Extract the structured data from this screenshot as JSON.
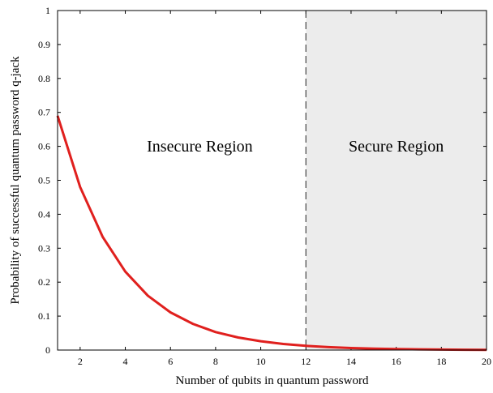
{
  "chart_data": {
    "type": "line",
    "title": "",
    "xlabel": "Number of qubits in quantum password",
    "ylabel": "Probability of successful quantum password q-jack",
    "xlim": [
      1,
      20
    ],
    "ylim": [
      0,
      1
    ],
    "x_ticks": [
      2,
      4,
      6,
      8,
      10,
      12,
      14,
      16,
      18,
      20
    ],
    "y_ticks": [
      0,
      0.1,
      0.2,
      0.3,
      0.4,
      0.5,
      0.6,
      0.7,
      0.8,
      0.9,
      1
    ],
    "grid": false,
    "series": [
      {
        "color": "#e0201e",
        "x": [
          1,
          2,
          3,
          4,
          5,
          6,
          7,
          8,
          9,
          10,
          11,
          12,
          13,
          14,
          15,
          16,
          17,
          18,
          19,
          20
        ],
        "y": [
          0.69,
          0.48,
          0.333,
          0.231,
          0.16,
          0.111,
          0.077,
          0.053,
          0.037,
          0.026,
          0.018,
          0.0124,
          0.0086,
          0.006,
          0.0041,
          0.0029,
          0.002,
          0.0014,
          0.001,
          0.0007
        ]
      }
    ],
    "threshold": {
      "x": 12,
      "style": "dashed",
      "color": "#444444"
    },
    "regions": [
      {
        "label": "Insecure Region",
        "x_range": [
          1,
          12
        ],
        "fill": "#ffffff"
      },
      {
        "label": "Secure Region",
        "x_range": [
          12,
          20
        ],
        "fill": "#ececec"
      }
    ]
  }
}
